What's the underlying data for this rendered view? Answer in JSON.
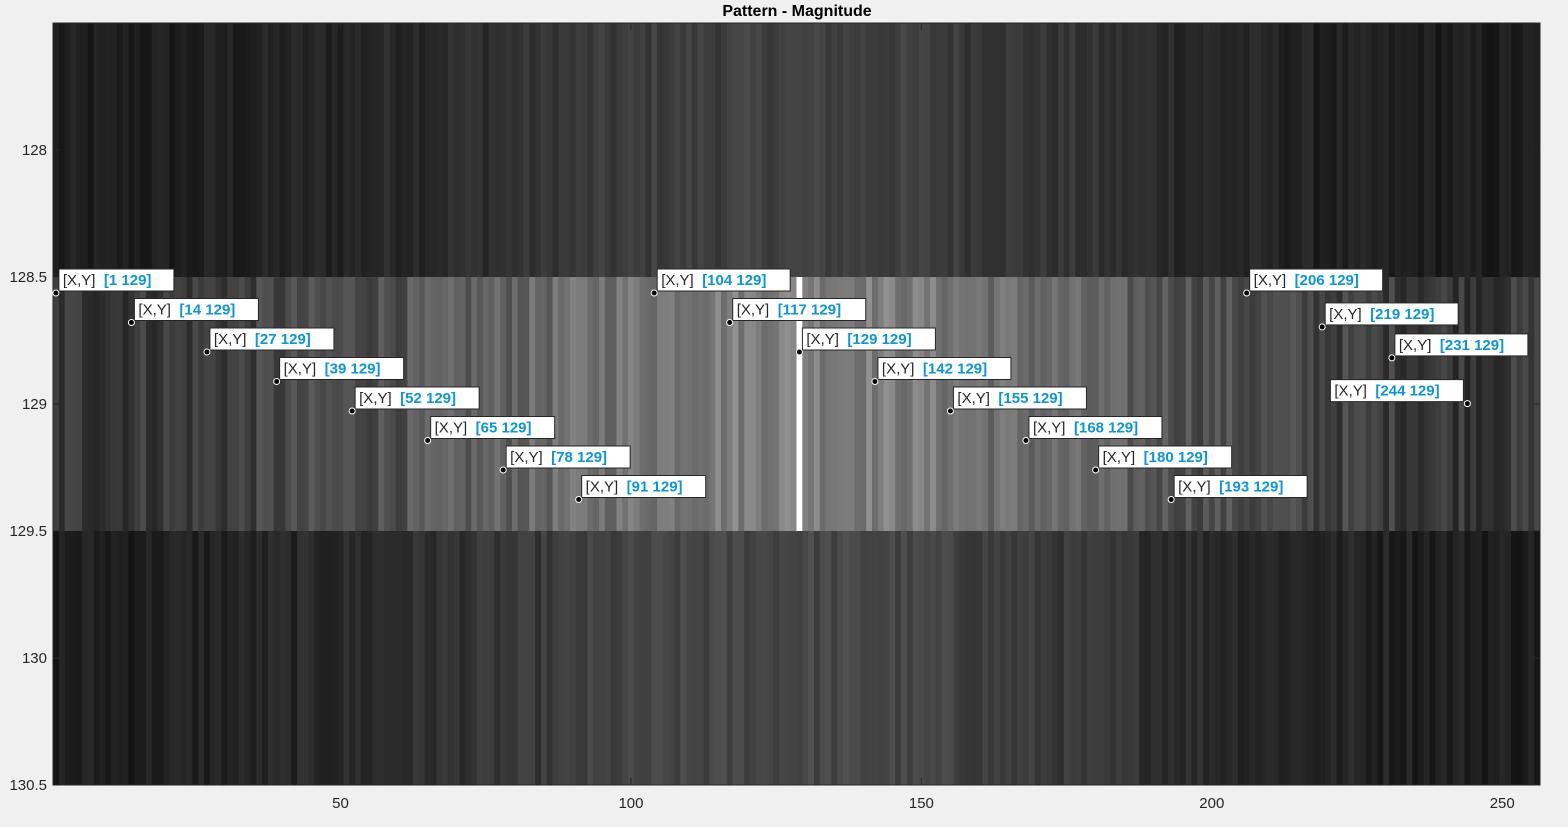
{
  "chart_data": {
    "type": "heatmap",
    "title": "Pattern - Magnitude",
    "xlabel": "",
    "ylabel": "",
    "colormap": "gray",
    "xlim": [
      0.5,
      256.5
    ],
    "ylim": [
      127.5,
      130.5
    ],
    "y_direction": "reverse",
    "rows": [
      128,
      129,
      130
    ],
    "columns": 256,
    "x_ticks": [
      50,
      100,
      150,
      200,
      250
    ],
    "x_tick_labels": [
      "50",
      "100",
      "150",
      "200",
      "250"
    ],
    "y_ticks": [
      128,
      128.5,
      129,
      129.5,
      130,
      130.5
    ],
    "y_tick_labels": [
      "128",
      "128.5",
      "129",
      "129.5",
      "130",
      "130.5"
    ],
    "datatip_label": "[X,Y]",
    "datatips": [
      {
        "x": 1,
        "y": 129,
        "text": "[1 129]"
      },
      {
        "x": 14,
        "y": 129,
        "text": "[14 129]"
      },
      {
        "x": 27,
        "y": 129,
        "text": "[27 129]"
      },
      {
        "x": 39,
        "y": 129,
        "text": "[39 129]"
      },
      {
        "x": 52,
        "y": 129,
        "text": "[52 129]"
      },
      {
        "x": 65,
        "y": 129,
        "text": "[65 129]"
      },
      {
        "x": 78,
        "y": 129,
        "text": "[78 129]"
      },
      {
        "x": 91,
        "y": 129,
        "text": "[91 129]"
      },
      {
        "x": 104,
        "y": 129,
        "text": "[104 129]"
      },
      {
        "x": 117,
        "y": 129,
        "text": "[117 129]"
      },
      {
        "x": 129,
        "y": 129,
        "text": "[129 129]"
      },
      {
        "x": 142,
        "y": 129,
        "text": "[142 129]"
      },
      {
        "x": 155,
        "y": 129,
        "text": "[155 129]"
      },
      {
        "x": 168,
        "y": 129,
        "text": "[168 129]"
      },
      {
        "x": 180,
        "y": 129,
        "text": "[180 129]"
      },
      {
        "x": 193,
        "y": 129,
        "text": "[193 129]"
      },
      {
        "x": 206,
        "y": 129,
        "text": "[206 129]"
      },
      {
        "x": 219,
        "y": 129,
        "text": "[219 129]"
      },
      {
        "x": 231,
        "y": 129,
        "text": "[231 129]"
      },
      {
        "x": 244,
        "y": 129,
        "text": "[244 129]"
      }
    ],
    "colors": {
      "figure_background": "#f0f0f0",
      "axes_text": "#262626",
      "datatip_value": "#0a96dc",
      "datatip_box": "#ffffff"
    }
  }
}
